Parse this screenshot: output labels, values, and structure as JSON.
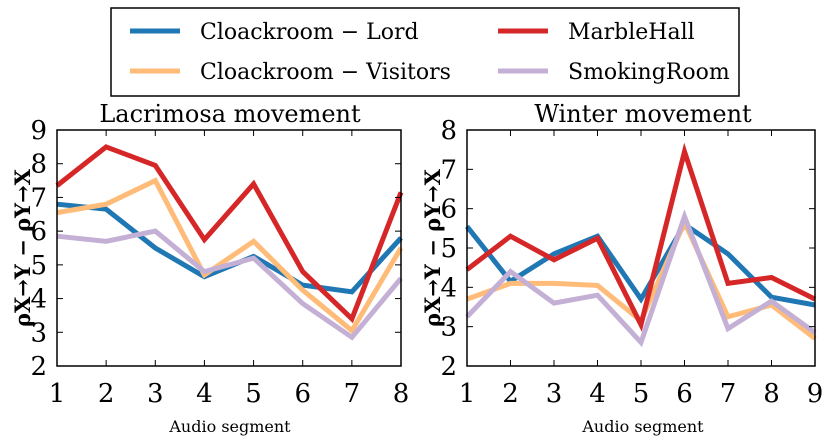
{
  "legend": {
    "items": [
      {
        "label": "Cloackroom − Lord",
        "color": "#1f77b4"
      },
      {
        "label": "MarbleHall",
        "color": "#d62728"
      },
      {
        "label": "Cloackroom − Visitors",
        "color": "#ffbb78"
      },
      {
        "label": "SmokingRoom",
        "color": "#c5b0d5"
      }
    ]
  },
  "chart_data": [
    {
      "type": "line",
      "title": "Lacrimosa movement",
      "xlabel": "Audio segment",
      "ylabel": "ρX→Y − ρY→X",
      "xlim": [
        1,
        8
      ],
      "ylim": [
        2,
        9
      ],
      "x": [
        1,
        2,
        3,
        4,
        5,
        6,
        7,
        8
      ],
      "xticks": [
        "1",
        "2",
        "3",
        "4",
        "5",
        "6",
        "7",
        "8"
      ],
      "yticks": [
        "2",
        "3",
        "4",
        "5",
        "6",
        "7",
        "8",
        "9"
      ],
      "series": [
        {
          "name": "Cloackroom − Lord",
          "color": "#1f77b4",
          "values": [
            6.8,
            6.65,
            5.5,
            4.65,
            5.25,
            4.4,
            4.2,
            5.8
          ]
        },
        {
          "name": "Cloackroom − Visitors",
          "color": "#ffbb78",
          "values": [
            6.55,
            6.8,
            7.5,
            4.7,
            5.7,
            4.25,
            3.05,
            5.5
          ]
        },
        {
          "name": "SmokingRoom",
          "color": "#c5b0d5",
          "values": [
            5.85,
            5.7,
            6.0,
            4.8,
            5.2,
            3.85,
            2.85,
            4.6
          ]
        },
        {
          "name": "MarbleHall",
          "color": "#d62728",
          "values": [
            7.35,
            8.5,
            7.95,
            5.75,
            7.4,
            4.8,
            3.4,
            7.15
          ]
        }
      ]
    },
    {
      "type": "line",
      "title": "Winter movement",
      "xlabel": "Audio segment",
      "ylabel": "ρX→Y − ρY→X",
      "xlim": [
        1,
        9
      ],
      "ylim": [
        2,
        8
      ],
      "x": [
        1,
        2,
        3,
        4,
        5,
        6,
        7,
        8,
        9
      ],
      "xticks": [
        "1",
        "2",
        "3",
        "4",
        "5",
        "6",
        "7",
        "8",
        "9"
      ],
      "yticks": [
        "2",
        "3",
        "4",
        "5",
        "6",
        "7",
        "8"
      ],
      "series": [
        {
          "name": "Cloackroom − Lord",
          "color": "#1f77b4",
          "values": [
            5.55,
            4.15,
            4.85,
            5.3,
            3.7,
            5.6,
            4.85,
            3.75,
            3.55
          ]
        },
        {
          "name": "Cloackroom − Visitors",
          "color": "#ffbb78",
          "values": [
            3.7,
            4.1,
            4.1,
            4.05,
            3.15,
            5.65,
            3.25,
            3.55,
            2.7
          ]
        },
        {
          "name": "SmokingRoom",
          "color": "#c5b0d5",
          "values": [
            3.25,
            4.4,
            3.6,
            3.8,
            2.6,
            5.8,
            2.95,
            3.65,
            2.85
          ]
        },
        {
          "name": "MarbleHall",
          "color": "#d62728",
          "values": [
            4.45,
            5.3,
            4.7,
            5.25,
            3.05,
            7.45,
            4.1,
            4.25,
            3.7
          ]
        }
      ]
    }
  ]
}
